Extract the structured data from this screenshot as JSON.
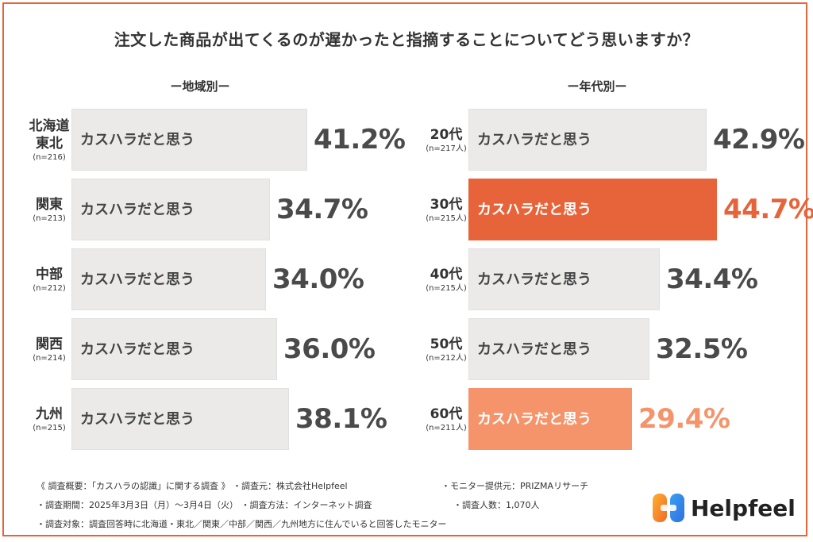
{
  "title": "注文した商品が出てくるのが遅かったと指摘することについてどう思いますか？",
  "colors": {
    "bar_default": "#ebeae9",
    "highlight_strong": "#e7643a",
    "highlight_light": "#f5946a",
    "frame": "#e7643a"
  },
  "chart_data": [
    {
      "type": "bar",
      "orientation": "horizontal",
      "title": "ー地域別ー",
      "bar_label": "カスハラだと思う",
      "categories": [
        "北海道東北",
        "関東",
        "中部",
        "関西",
        "九州"
      ],
      "category_lines": [
        [
          "北海道",
          "東北"
        ],
        [
          "関東"
        ],
        [
          "中部"
        ],
        [
          "関西"
        ],
        [
          "九州"
        ]
      ],
      "sample_sizes": [
        "(n=216)",
        "(n=213)",
        "(n=212)",
        "(n=214)",
        "(n=215)"
      ],
      "values": [
        41.2,
        34.7,
        34.0,
        36.0,
        38.1
      ],
      "value_labels": [
        "41.2%",
        "34.7%",
        "34.0%",
        "36.0%",
        "38.1%"
      ],
      "highlight": [
        "none",
        "none",
        "none",
        "none",
        "none"
      ],
      "xlim": [
        0,
        100
      ]
    },
    {
      "type": "bar",
      "orientation": "horizontal",
      "title": "ー年代別ー",
      "bar_label": "カスハラだと思う",
      "categories": [
        "20代",
        "30代",
        "40代",
        "50代",
        "60代"
      ],
      "category_lines": [
        [
          "20代"
        ],
        [
          "30代"
        ],
        [
          "40代"
        ],
        [
          "50代"
        ],
        [
          "60代"
        ]
      ],
      "sample_sizes": [
        "(n=217人)",
        "(n=215人)",
        "(n=215人)",
        "(n=212人)",
        "(n=211人)"
      ],
      "values": [
        42.9,
        44.7,
        34.4,
        32.5,
        29.4
      ],
      "value_labels": [
        "42.9%",
        "44.7%",
        "34.4%",
        "32.5%",
        "29.4%"
      ],
      "highlight": [
        "none",
        "max",
        "none",
        "none",
        "min"
      ],
      "xlim": [
        0,
        100
      ]
    }
  ],
  "footer": {
    "line1a": "《 調査概要：「カスハラの認識」に関する調査 》 ・調査元：株式会社Helpfeel",
    "line1b": "・モニター提供元：PRIZMAリサーチ",
    "line2a": "・調査期間：2025年3月3日（月）〜3月4日（火） ・調査方法：インターネット調査",
    "line2b": "・調査人数：1,070人",
    "line3": "・調査対象：調査回答時に北海道・東北／関東／中部／関西／九州地方に住んでいると回答したモニター"
  },
  "logo": {
    "name": "Helpfeel",
    "icon": "helpfeel-logo-icon"
  }
}
